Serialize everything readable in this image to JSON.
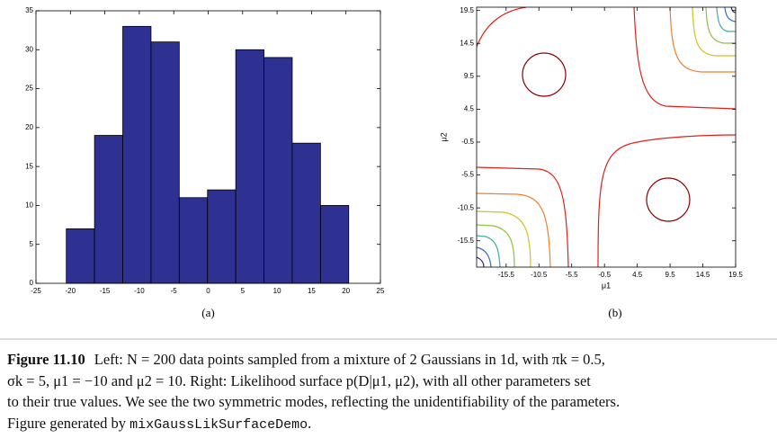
{
  "chart_data": [
    {
      "type": "histogram",
      "label": "(a)",
      "bins": [
        -20.6,
        -16.5,
        -12.4,
        -8.3,
        -4.2,
        -0.1,
        4.0,
        8.1,
        12.2,
        16.3,
        20.4
      ],
      "values": [
        7,
        19,
        33,
        31,
        11,
        12,
        30,
        29,
        18,
        10
      ],
      "color": "#2e3192",
      "xlim": [
        -25,
        25
      ],
      "xticks": [
        -25,
        -20,
        -15,
        -10,
        -5,
        0,
        5,
        10,
        15,
        20,
        25
      ],
      "ylim": [
        0,
        35
      ],
      "yticks": [
        0,
        5,
        10,
        15,
        20,
        25,
        30,
        35
      ]
    },
    {
      "type": "contour",
      "label": "(b)",
      "x_label": "μ1",
      "y_label": "μ2",
      "xlim": [
        -20,
        19.5
      ],
      "xticks": [
        -15.5,
        -10.5,
        -5.5,
        -0.5,
        4.5,
        9.5,
        14.5,
        19.5
      ],
      "ylim": [
        -19.5,
        20
      ],
      "yticks": [
        -15.5,
        -10.5,
        -5.5,
        -0.5,
        4.5,
        9.5,
        14.5,
        19.5
      ]
    }
  ],
  "caption": {
    "figure": "Figure 11.10",
    "line1": "Left: N = 200 data points sampled from a mixture of 2 Gaussians in 1d, with πk = 0.5,",
    "line2": "σk = 5, μ1 = −10 and μ2 = 10. Right: Likelihood surface p(D|μ1, μ2), with all other parameters set",
    "line3": "to their true values. We see the two symmetric modes, reflecting the unidentifiability of the parameters.",
    "line4": "Figure generated by ",
    "code": "mixGaussLikSurfaceDemo",
    "end": "."
  }
}
